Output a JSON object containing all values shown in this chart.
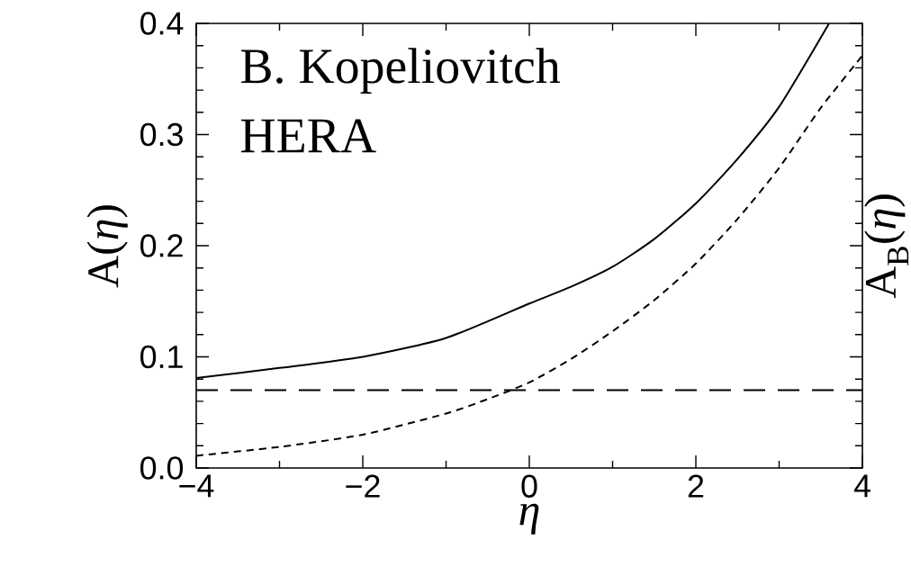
{
  "chart_data": {
    "type": "line",
    "xlabel": "η",
    "ylabel": "A(*η*)",
    "y2label": "A$_{B}$(*η*)",
    "annotations": [
      "B. Kopeliovitch",
      "HERA"
    ],
    "series": [
      {
        "x": [
          -4,
          -3,
          -2,
          -1,
          0,
          0.5,
          1,
          1.5,
          2,
          2.5,
          3,
          3.6
        ],
        "values": [
          0.081,
          0.09,
          0.1,
          0.117,
          0.148,
          0.163,
          0.181,
          0.206,
          0.238,
          0.278,
          0.325,
          0.4
        ],
        "color": "#000000",
        "line_style": "solid"
      },
      {
        "x": [
          -4,
          -3,
          -2,
          -1,
          -0.5,
          0,
          0.5,
          1,
          1.5,
          2,
          2.5,
          3,
          3.5,
          4
        ],
        "values": [
          0.011,
          0.019,
          0.03,
          0.049,
          0.062,
          0.077,
          0.098,
          0.123,
          0.151,
          0.184,
          0.224,
          0.27,
          0.324,
          0.371
        ],
        "color": "#000000",
        "line_style": "dashed"
      }
    ],
    "ref_lines": [
      {
        "axis": "y",
        "value": 0.07,
        "color": "#000000",
        "line_style": "dashed"
      }
    ],
    "xlim": [
      -4,
      4
    ],
    "ylim": [
      0,
      0.4
    ],
    "xticks": [
      {
        "value": -4,
        "label": "−4"
      },
      {
        "value": -2,
        "label": "−2"
      },
      0,
      2,
      4
    ],
    "yticks": [
      {
        "value": 0,
        "label": "0.0"
      },
      {
        "value": 0.1,
        "label": "0.1"
      },
      {
        "value": 0.2,
        "label": "0.2"
      },
      {
        "value": 0.3,
        "label": "0.3"
      },
      {
        "value": 0.4,
        "label": "0.4"
      }
    ]
  }
}
